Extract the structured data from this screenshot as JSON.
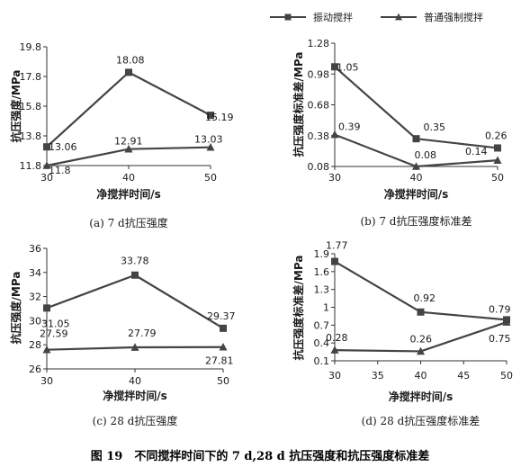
{
  "legend": {
    "items": [
      {
        "label": "振动搅拌",
        "marker": "square"
      },
      {
        "label": "普通强制搅拌",
        "marker": "triangle"
      }
    ]
  },
  "colors": {
    "series": "#444444",
    "axis": "#333333"
  },
  "figure_caption": "图 19　不同搅拌时间下的 7 d,28 d 抗压强度和抗压强度标准差",
  "chart_data": [
    {
      "type": "line",
      "caption": "(a) 7 d抗压强度",
      "xlabel": "净搅拌时间/s",
      "ylabel": "抗压强度/MPa",
      "x": [
        30,
        40,
        50
      ],
      "xticks": [
        "30",
        "40",
        "50"
      ],
      "ylim": [
        11.8,
        19.8
      ],
      "yticks": [
        "11.8",
        "13.8",
        "15.8",
        "17.8",
        "19.8"
      ],
      "series": [
        {
          "name": "振动搅拌",
          "marker": "square",
          "values": [
            13.06,
            18.08,
            15.19
          ],
          "labels": [
            "13.06",
            "18.08",
            "15.19"
          ]
        },
        {
          "name": "普通强制搅拌",
          "marker": "triangle",
          "values": [
            11.8,
            12.91,
            13.03
          ],
          "labels": [
            "11.8",
            "12.91",
            "13.03"
          ]
        }
      ]
    },
    {
      "type": "line",
      "caption": "(b) 7 d抗压强度标准差",
      "xlabel": "净搅拌时间/s",
      "ylabel": "抗压强度标准差/MPa",
      "x": [
        30,
        40,
        50
      ],
      "xticks": [
        "30",
        "40",
        "50"
      ],
      "ylim": [
        0.08,
        1.28
      ],
      "yticks": [
        "0.08",
        "0.38",
        "0.68",
        "0.98",
        "1.28"
      ],
      "series": [
        {
          "name": "振动搅拌",
          "marker": "square",
          "values": [
            1.05,
            0.35,
            0.26
          ],
          "labels": [
            "1.05",
            "0.35",
            "0.26"
          ]
        },
        {
          "name": "普通强制搅拌",
          "marker": "triangle",
          "values": [
            0.39,
            0.08,
            0.14
          ],
          "labels": [
            "0.39",
            "0.08",
            "0.14"
          ]
        }
      ]
    },
    {
      "type": "line",
      "caption": "(c) 28 d抗压强度",
      "xlabel": "净搅拌时间/s",
      "ylabel": "抗压强度/MPa",
      "x": [
        30,
        40,
        50
      ],
      "xticks": [
        "30",
        "40",
        "50"
      ],
      "ylim": [
        26,
        36
      ],
      "yticks": [
        "26",
        "28",
        "30",
        "32",
        "34",
        "36"
      ],
      "series": [
        {
          "name": "振动搅拌",
          "marker": "square",
          "values": [
            31.05,
            33.78,
            29.37
          ],
          "labels": [
            "31.05",
            "33.78",
            "29.37"
          ]
        },
        {
          "name": "普通强制搅拌",
          "marker": "triangle",
          "values": [
            27.59,
            27.79,
            27.81
          ],
          "labels": [
            "27.59",
            "27.79",
            "27.81"
          ]
        }
      ]
    },
    {
      "type": "line",
      "caption": "(d) 28 d抗压强度标准差",
      "xlabel": "净搅拌时间/s",
      "ylabel": "抗压强度标准差/MPa",
      "x": [
        30,
        35,
        40,
        45,
        50
      ],
      "xticks": [
        "30",
        "35",
        "40",
        "45",
        "50"
      ],
      "ylim": [
        0.1,
        1.9
      ],
      "yticks": [
        "0.1",
        "0.4",
        "0.7",
        "1",
        "1.3",
        "1.6",
        "1.9"
      ],
      "series": [
        {
          "name": "振动搅拌",
          "marker": "square",
          "x": [
            30,
            40,
            50
          ],
          "values": [
            1.77,
            0.92,
            0.79
          ],
          "labels": [
            "1.77",
            "0.92",
            "0.79"
          ]
        },
        {
          "name": "普通强制搅拌",
          "marker": "triangle",
          "x": [
            30,
            40,
            50
          ],
          "values": [
            0.28,
            0.26,
            0.75
          ],
          "labels": [
            "0.28",
            "0.26",
            "0.75"
          ]
        }
      ]
    }
  ]
}
